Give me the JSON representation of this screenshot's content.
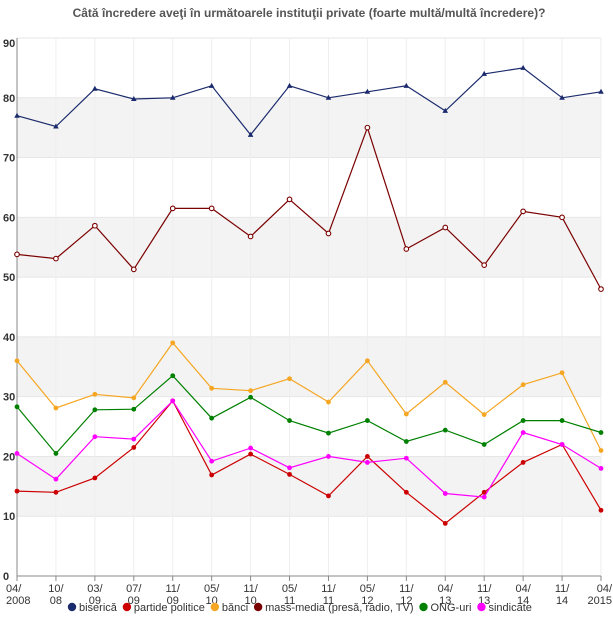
{
  "chart_data": {
    "type": "line",
    "title": "Câtă încredere aveţi în următoarele instituţii private (foarte multă/multă încredere)?",
    "ylim": [
      0,
      90
    ],
    "yticks": [
      0,
      10,
      20,
      30,
      40,
      50,
      60,
      70,
      80,
      90
    ],
    "grid": "alternating horizontal bands",
    "legend_position": "bottom",
    "categories": [
      [
        "04/",
        "2008"
      ],
      [
        "10/",
        "08"
      ],
      [
        "03/",
        "09"
      ],
      [
        "07/",
        "09"
      ],
      [
        "11/",
        "09"
      ],
      [
        "05/",
        "10"
      ],
      [
        "11/",
        "10"
      ],
      [
        "05/",
        "11"
      ],
      [
        "11/",
        "11"
      ],
      [
        "05/",
        "12"
      ],
      [
        "11/",
        "12"
      ],
      [
        "04/",
        "13"
      ],
      [
        "11/",
        "13"
      ],
      [
        "04/",
        "14"
      ],
      [
        "11/",
        "14"
      ],
      [
        "04/",
        "2015"
      ]
    ],
    "series": [
      {
        "name": "biserică",
        "color": "#1a2a6c",
        "marker": "triangle",
        "values": [
          77,
          75.2,
          81.5,
          79.8,
          80,
          82,
          73.8,
          82,
          80,
          81,
          82,
          77.8,
          84,
          85,
          80,
          81
        ]
      },
      {
        "name": "partide politice",
        "color": "#cc0000",
        "marker": "dot",
        "values": [
          14.2,
          14,
          16.4,
          21.5,
          29.3,
          16.9,
          20.4,
          17,
          13.4,
          20,
          14,
          8.8,
          14,
          19,
          22,
          11
        ]
      },
      {
        "name": "bănci",
        "color": "#f5a623",
        "marker": "dot",
        "values": [
          36,
          28.1,
          30.4,
          29.8,
          39,
          31.4,
          31,
          33,
          29.1,
          36,
          27.1,
          32.4,
          27,
          32,
          34,
          21
        ]
      },
      {
        "name": "mass-media (presă, radio, TV)",
        "color": "#7b0000",
        "marker": "circle",
        "values": [
          53.8,
          53.1,
          58.6,
          51.3,
          61.5,
          61.5,
          56.8,
          63,
          57.3,
          75,
          54.7,
          58.3,
          52,
          61,
          60,
          48
        ]
      },
      {
        "name": "ONG-uri",
        "color": "#008000",
        "marker": "dot",
        "values": [
          28.3,
          20.5,
          27.8,
          27.9,
          33.5,
          26.4,
          29.9,
          26,
          23.9,
          26,
          22.5,
          24.4,
          22,
          26,
          26,
          24
        ]
      },
      {
        "name": "sindicate",
        "color": "#ff00ff",
        "marker": "dot",
        "values": [
          20.5,
          16.2,
          23.3,
          22.9,
          29.3,
          19.2,
          21.4,
          18.1,
          20,
          19,
          19.7,
          13.8,
          13.2,
          24,
          22,
          18
        ]
      }
    ]
  }
}
